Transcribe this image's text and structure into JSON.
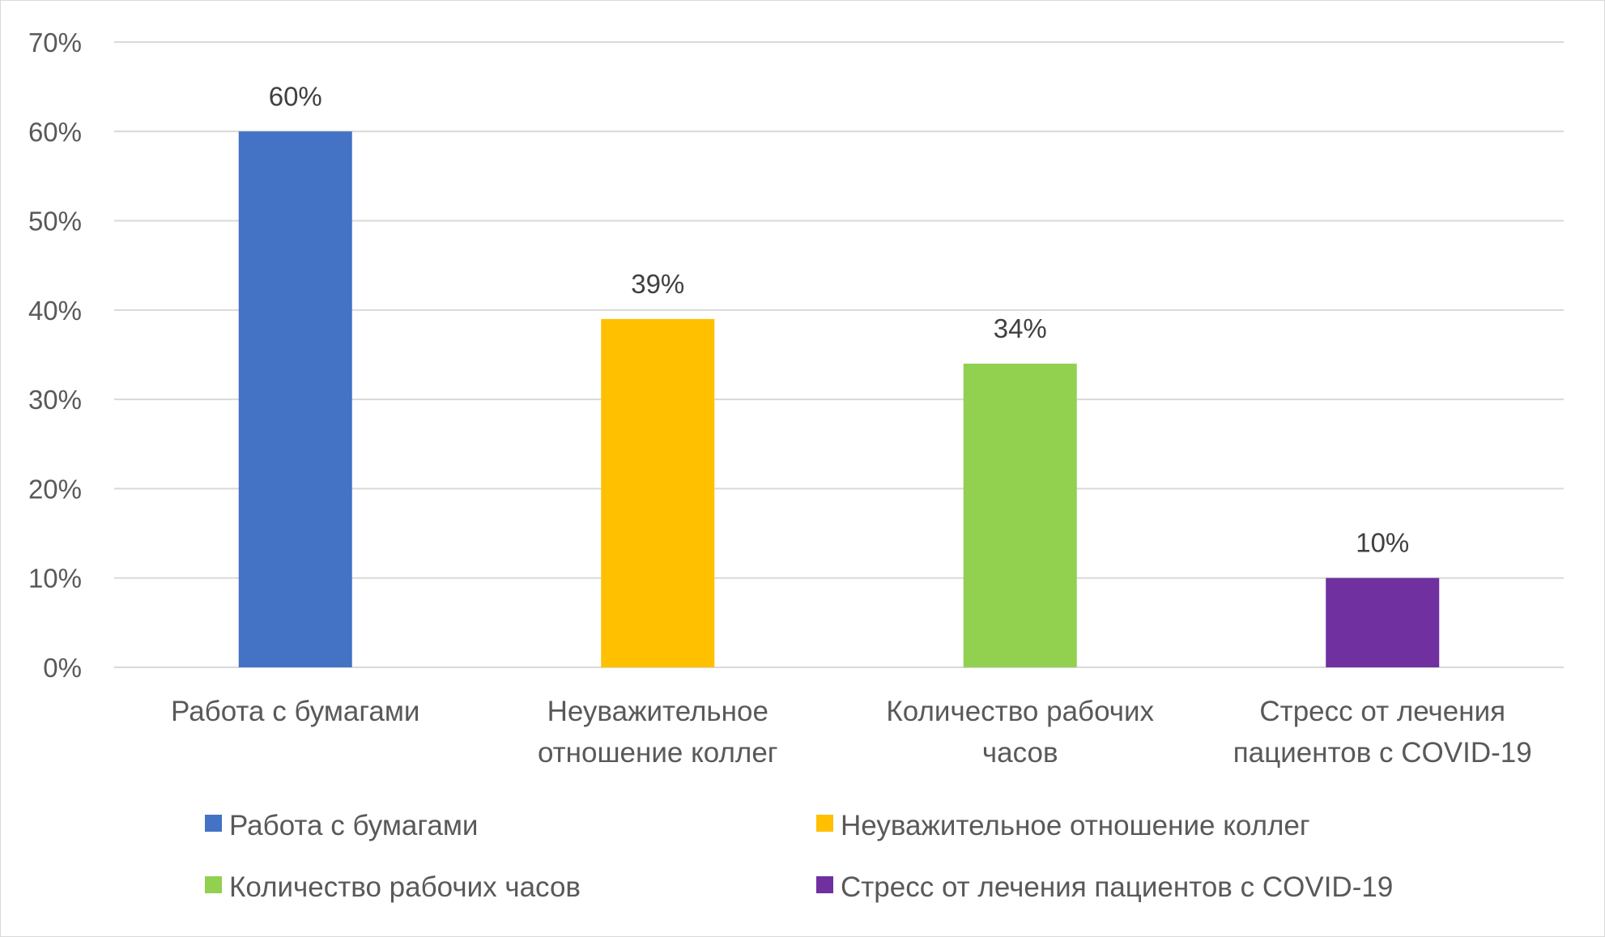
{
  "chart_data": {
    "type": "bar",
    "categories": [
      [
        "Работа с бумагами"
      ],
      [
        "Неуважительное",
        "отношение коллег"
      ],
      [
        "Количество рабочих",
        "часов"
      ],
      [
        "Стресс от лечения",
        "пациентов с COVID-19"
      ]
    ],
    "values": [
      60,
      39,
      34,
      10
    ],
    "data_labels": [
      "60%",
      "39%",
      "34%",
      "10%"
    ],
    "colors": [
      "#4472C4",
      "#FFC000",
      "#92D050",
      "#7030A0"
    ],
    "ylim": [
      0,
      70
    ],
    "y_ticks": [
      0,
      10,
      20,
      30,
      40,
      50,
      60,
      70
    ],
    "y_tick_labels": [
      "0%",
      "10%",
      "20%",
      "30%",
      "40%",
      "50%",
      "60%",
      "70%"
    ],
    "grid": true,
    "gridline_color": "#d9d9d9",
    "legend": {
      "position": "bottom",
      "entries": [
        "Работа с бумагами",
        "Неуважительное отношение коллег",
        "Количество рабочих часов",
        "Стресс от лечения пациентов с COVID-19"
      ]
    },
    "title": "",
    "xlabel": "",
    "ylabel": ""
  }
}
